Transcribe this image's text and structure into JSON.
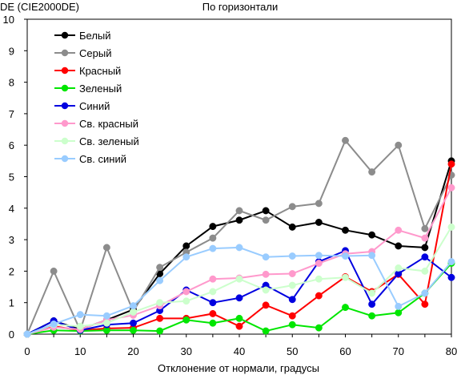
{
  "chart_data": {
    "type": "line",
    "title": "По горизонтали",
    "ylabel": "DE (CIE2000DE)",
    "xlabel": "Отклонение от нормали, градусы",
    "x": [
      0,
      5,
      10,
      15,
      20,
      25,
      30,
      35,
      40,
      45,
      50,
      55,
      60,
      65,
      70,
      75,
      80
    ],
    "xlim": [
      0,
      80
    ],
    "ylim": [
      0,
      10
    ],
    "xticks": [
      "0",
      "10",
      "20",
      "30",
      "40",
      "50",
      "60",
      "70",
      "80"
    ],
    "yticks": [
      "0",
      "1",
      "2",
      "3",
      "4",
      "5",
      "6",
      "7",
      "8",
      "9",
      "10"
    ],
    "grid": false,
    "legend_position": "top-left",
    "series": [
      {
        "name": "Белый",
        "color": "#000000",
        "values": [
          0,
          0.42,
          0.15,
          0.45,
          0.78,
          1.92,
          2.8,
          3.42,
          3.62,
          3.92,
          3.4,
          3.55,
          3.3,
          3.15,
          2.8,
          2.75,
          5.5
        ]
      },
      {
        "name": "Серый",
        "color": "#8c8c8c",
        "values": [
          0,
          2.0,
          0.12,
          2.75,
          0.72,
          2.12,
          2.6,
          3.05,
          3.92,
          3.62,
          4.05,
          4.15,
          6.15,
          5.15,
          6.0,
          3.35,
          5.05
        ]
      },
      {
        "name": "Красный",
        "color": "#ff0000",
        "values": [
          0,
          0.25,
          0.12,
          0.18,
          0.2,
          0.5,
          0.5,
          0.65,
          0.25,
          0.92,
          0.58,
          1.22,
          1.82,
          1.35,
          1.9,
          0.95,
          5.4
        ]
      },
      {
        "name": "Зеленый",
        "color": "#00e600",
        "values": [
          0,
          0.12,
          0.1,
          0.12,
          0.12,
          0.1,
          0.45,
          0.35,
          0.5,
          0.1,
          0.3,
          0.2,
          0.85,
          0.58,
          0.68,
          1.3,
          2.25
        ]
      },
      {
        "name": "Синий",
        "color": "#0000e0",
        "values": [
          0,
          0.42,
          0.12,
          0.3,
          0.35,
          0.75,
          1.4,
          1.0,
          1.15,
          1.55,
          1.1,
          2.3,
          2.65,
          0.95,
          1.92,
          2.45,
          1.8
        ]
      },
      {
        "name": "Св. красный",
        "color": "#ff99cc",
        "values": [
          0,
          0.22,
          0.15,
          0.45,
          0.6,
          0.9,
          1.35,
          1.75,
          1.78,
          1.9,
          1.92,
          2.25,
          2.55,
          2.62,
          3.3,
          3.05,
          4.65
        ]
      },
      {
        "name": "Св. зеленый",
        "color": "#ccffcc",
        "values": [
          0,
          0.3,
          0.25,
          0.35,
          0.7,
          1.0,
          1.05,
          1.35,
          1.75,
          1.4,
          1.55,
          1.75,
          1.8,
          1.3,
          2.1,
          2.0,
          3.4
        ]
      },
      {
        "name": "Св. синий",
        "color": "#99ccff",
        "values": [
          0,
          0.32,
          0.62,
          0.58,
          0.9,
          1.7,
          2.45,
          2.72,
          2.75,
          2.45,
          2.48,
          2.5,
          2.48,
          2.5,
          0.88,
          1.3,
          2.3
        ]
      }
    ]
  }
}
